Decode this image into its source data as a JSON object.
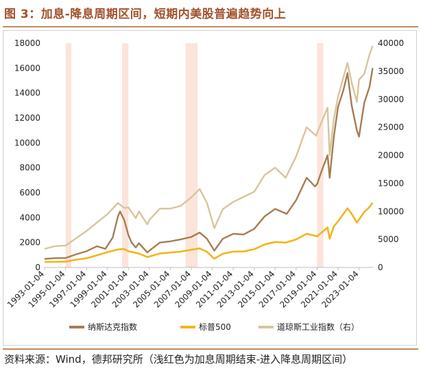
{
  "title": "图 3：加息-降息周期区间，短期内美股普遍趋势向上",
  "source": "资料来源：Wind，德邦研究所（浅红色为加息周期结束-进入降息周期区间）",
  "colors": {
    "nasdaq": "#a67c52",
    "sp500": "#f4b41a",
    "dow": "#d9c49b",
    "shade": "#fbe4da",
    "accent": "#a0522d"
  },
  "chart_data": {
    "type": "line",
    "x_tick_labels": [
      "1993-01-04",
      "1995-01-04",
      "1997-01-04",
      "1999-01-04",
      "2001-01-04",
      "2003-01-04",
      "2005-01-04",
      "2007-01-04",
      "2009-01-04",
      "2011-01-04",
      "2013-01-04",
      "2015-01-04",
      "2017-01-04",
      "2019-01-04",
      "2021-01-04",
      "2023-01-04"
    ],
    "xlim": [
      1993.0,
      2024.4
    ],
    "y_left": {
      "lim": [
        0,
        18000
      ],
      "ticks": [
        "0",
        "2000",
        "4000",
        "6000",
        "8000",
        "10000",
        "12000",
        "14000",
        "16000",
        "18000"
      ]
    },
    "y_right": {
      "lim": [
        0,
        40000
      ],
      "ticks": [
        "0",
        "5000",
        "10000",
        "15000",
        "20000",
        "25000",
        "30000",
        "35000",
        "40000"
      ]
    },
    "shaded_periods": [
      [
        1995.0,
        1995.55
      ],
      [
        2000.4,
        2001.0
      ],
      [
        2006.45,
        2007.6
      ],
      [
        2019.0,
        2019.6
      ]
    ],
    "legend": [
      "纳斯达克指数",
      "标普500",
      "道琼斯工业指数（右）"
    ],
    "legend_position": "bottom",
    "series": [
      {
        "name": "纳斯达克指数",
        "axis": "left",
        "color_key": "nasdaq",
        "x": [
          1993.0,
          1994.0,
          1995.0,
          1996.0,
          1997.0,
          1998.0,
          1998.8,
          1999.5,
          2000.0,
          2000.2,
          2000.6,
          2001.0,
          2001.3,
          2001.7,
          2002.0,
          2002.8,
          2003.0,
          2004.0,
          2005.0,
          2006.0,
          2007.0,
          2007.8,
          2008.5,
          2009.2,
          2010.0,
          2011.0,
          2012.0,
          2013.0,
          2014.0,
          2015.0,
          2016.1,
          2017.0,
          2018.0,
          2018.8,
          2019.0,
          2019.5,
          2020.0,
          2020.2,
          2020.6,
          2021.0,
          2021.5,
          2021.9,
          2022.3,
          2022.8,
          2023.0,
          2023.5,
          2024.0,
          2024.3
        ],
        "y": [
          680,
          750,
          760,
          1050,
          1300,
          1700,
          1500,
          2400,
          4100,
          4500,
          3800,
          2600,
          2000,
          1600,
          1950,
          1200,
          1350,
          2000,
          2100,
          2250,
          2450,
          2800,
          2300,
          1350,
          2300,
          2700,
          2650,
          3100,
          4100,
          4700,
          4300,
          5400,
          7200,
          6500,
          6700,
          7900,
          9000,
          7200,
          10500,
          12900,
          14200,
          15600,
          13000,
          11000,
          10500,
          13200,
          14500,
          16000
        ]
      },
      {
        "name": "标普500",
        "axis": "left",
        "color_key": "sp500",
        "x": [
          1993.0,
          1995.0,
          1996.0,
          1997.0,
          1998.0,
          1999.0,
          2000.0,
          2000.6,
          2001.0,
          2002.0,
          2002.8,
          2003.0,
          2004.0,
          2005.0,
          2006.0,
          2007.0,
          2007.8,
          2008.5,
          2009.2,
          2010.0,
          2011.0,
          2012.0,
          2013.0,
          2014.0,
          2015.0,
          2016.0,
          2017.0,
          2018.0,
          2019.0,
          2020.0,
          2020.2,
          2020.6,
          2021.0,
          2021.9,
          2022.3,
          2022.8,
          2023.0,
          2023.5,
          2024.0,
          2024.3
        ],
        "y": [
          440,
          460,
          620,
          740,
          980,
          1230,
          1450,
          1480,
          1300,
          1120,
          840,
          880,
          1120,
          1200,
          1270,
          1420,
          1530,
          1250,
          700,
          1100,
          1270,
          1280,
          1460,
          1850,
          2050,
          2000,
          2250,
          2700,
          2500,
          3200,
          2300,
          3300,
          3700,
          4750,
          4300,
          3600,
          3850,
          4450,
          4850,
          5200
        ]
      },
      {
        "name": "道琼斯工业指数（右）",
        "axis": "right",
        "color_key": "dow",
        "x": [
          1993.0,
          1994.0,
          1995.0,
          1996.0,
          1997.0,
          1998.0,
          1999.0,
          2000.0,
          2000.6,
          2001.0,
          2001.7,
          2002.0,
          2002.8,
          2003.0,
          2004.0,
          2005.0,
          2006.0,
          2007.0,
          2007.8,
          2008.5,
          2009.2,
          2010.0,
          2011.0,
          2012.0,
          2013.0,
          2014.0,
          2015.0,
          2016.0,
          2017.0,
          2018.0,
          2018.9,
          2019.0,
          2020.0,
          2020.2,
          2020.6,
          2021.0,
          2021.9,
          2022.3,
          2022.8,
          2023.0,
          2023.5,
          2024.0,
          2024.3
        ],
        "y": [
          3300,
          3800,
          3900,
          5200,
          6500,
          8000,
          9500,
          11500,
          10600,
          10700,
          8800,
          10000,
          7700,
          8500,
          10500,
          10500,
          11000,
          12500,
          14000,
          11500,
          7000,
          10400,
          11700,
          12600,
          13500,
          16500,
          17800,
          16000,
          19800,
          25000,
          23500,
          24000,
          28500,
          20000,
          26500,
          30500,
          36500,
          33000,
          29500,
          33500,
          34500,
          38000,
          39500
        ]
      }
    ]
  }
}
